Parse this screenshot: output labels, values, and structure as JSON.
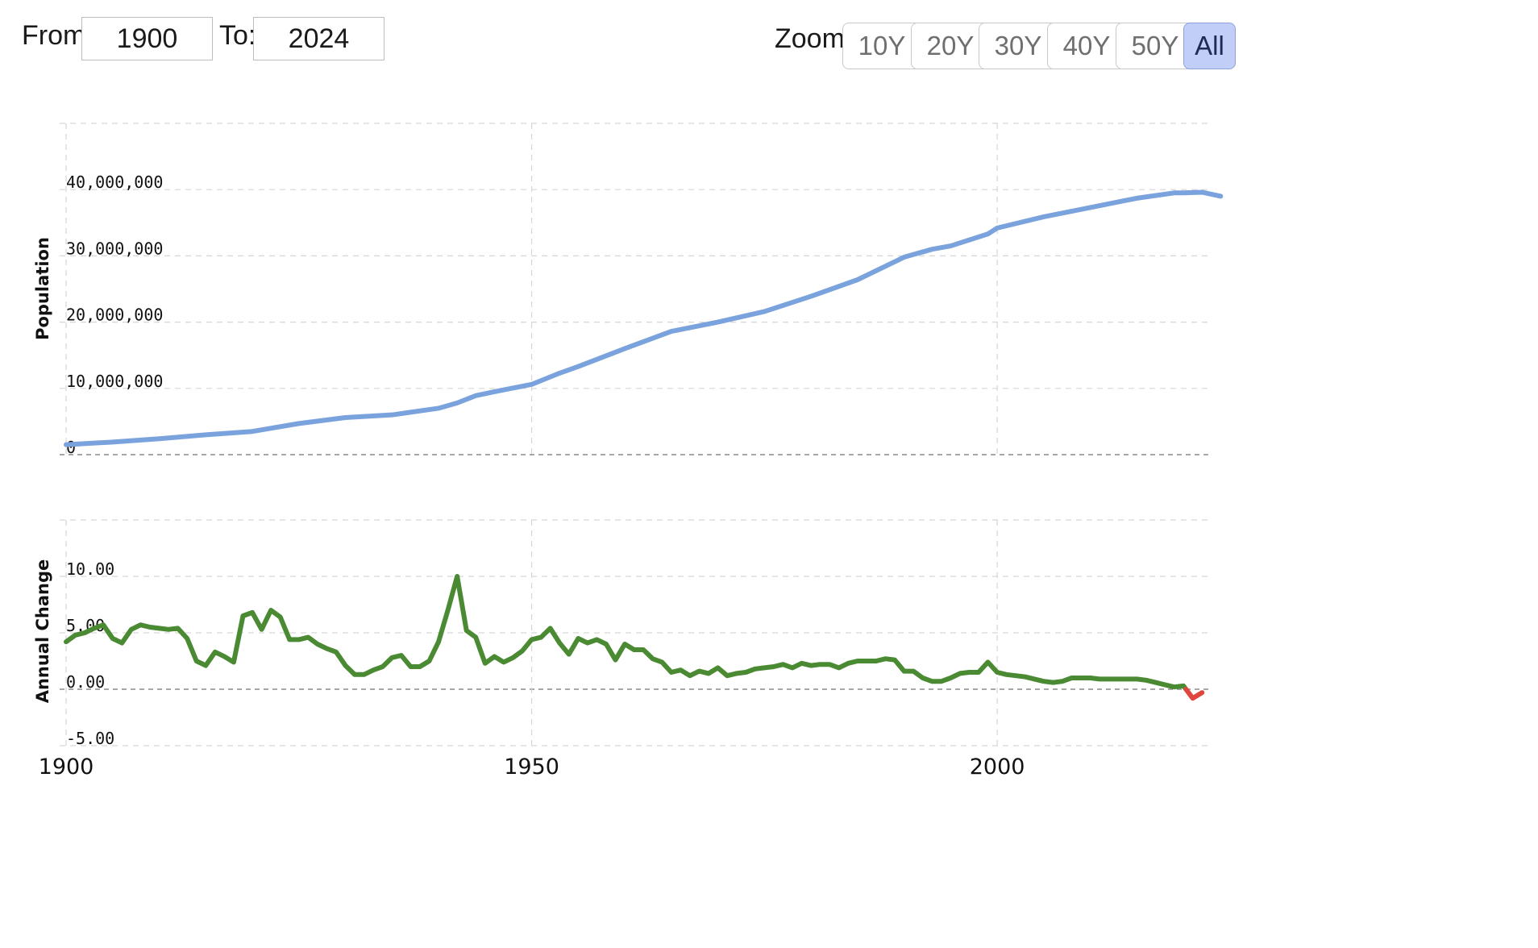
{
  "controls": {
    "from_label": "From:",
    "from_value": "1900",
    "to_label": "To:",
    "to_value": "2024",
    "zoom_label": "Zoom:",
    "zoom_buttons": [
      {
        "id": "10y",
        "label": "10Y",
        "active": false
      },
      {
        "id": "20y",
        "label": "20Y",
        "active": false
      },
      {
        "id": "30y",
        "label": "30Y",
        "active": false
      },
      {
        "id": "40y",
        "label": "40Y",
        "active": false
      },
      {
        "id": "50y",
        "label": "50Y",
        "active": false
      },
      {
        "id": "all",
        "label": "All",
        "active": true
      }
    ]
  },
  "chart_data": [
    {
      "type": "line",
      "ylabel": "Population",
      "ylim": [
        0,
        50000000
      ],
      "yticks": [
        0,
        10000000,
        20000000,
        30000000,
        40000000
      ],
      "ytick_labels": [
        "0",
        "10,000,000",
        "20,000,000",
        "30,000,000",
        "40,000,000"
      ],
      "grid": true,
      "color": "#7aa3dd",
      "series": [
        {
          "x": [
            1900,
            1905,
            1910,
            1915,
            1920,
            1925,
            1930,
            1935,
            1940,
            1942,
            1944,
            1946,
            1950,
            1953,
            1955,
            1960,
            1965,
            1970,
            1975,
            1980,
            1985,
            1990,
            1993,
            1995,
            1999,
            2000,
            2005,
            2010,
            2015,
            2019,
            2020,
            2022,
            2024
          ],
          "values": [
            1500000,
            1900000,
            2400000,
            3000000,
            3500000,
            4700000,
            5600000,
            6000000,
            7000000,
            7800000,
            8900000,
            9500000,
            10600000,
            12300000,
            13300000,
            16000000,
            18600000,
            20000000,
            21600000,
            23900000,
            26400000,
            29800000,
            31000000,
            31500000,
            33300000,
            34200000,
            35900000,
            37300000,
            38700000,
            39500000,
            39500000,
            39600000,
            39000000
          ]
        }
      ]
    },
    {
      "type": "line",
      "ylabel": "Annual Change",
      "ylim": [
        -5,
        15
      ],
      "yticks": [
        -5,
        0,
        5,
        10
      ],
      "ytick_labels": [
        "-5.00",
        "0.00",
        "5.00",
        "10.00"
      ],
      "xticks": [
        1900,
        1950,
        2000
      ],
      "xlim": [
        1900,
        2022.5
      ],
      "grid": true,
      "color": "#4a8a33",
      "negative_color": "#e0463d",
      "series": [
        {
          "x": [
            1900,
            1901,
            1902,
            1903,
            1904,
            1905,
            1906,
            1907,
            1908,
            1909,
            1910,
            1911,
            1912,
            1913,
            1914,
            1915,
            1916,
            1917,
            1918,
            1919,
            1920,
            1921,
            1922,
            1923,
            1924,
            1925,
            1926,
            1927,
            1928,
            1929,
            1930,
            1931,
            1932,
            1933,
            1934,
            1935,
            1936,
            1937,
            1938,
            1939,
            1940,
            1941,
            1942,
            1943,
            1944,
            1945,
            1946,
            1947,
            1948,
            1949,
            1950,
            1951,
            1952,
            1953,
            1954,
            1955,
            1956,
            1957,
            1958,
            1959,
            1960,
            1961,
            1962,
            1963,
            1964,
            1965,
            1966,
            1967,
            1968,
            1969,
            1970,
            1971,
            1972,
            1973,
            1974,
            1975,
            1976,
            1977,
            1978,
            1979,
            1980,
            1981,
            1982,
            1983,
            1984,
            1985,
            1986,
            1987,
            1988,
            1989,
            1990,
            1991,
            1992,
            1993,
            1994,
            1995,
            1996,
            1997,
            1998,
            1999,
            2000,
            2001,
            2002,
            2003,
            2004,
            2005,
            2006,
            2007,
            2008,
            2009,
            2010,
            2011,
            2012,
            2013,
            2014,
            2015,
            2016,
            2017,
            2018,
            2019,
            2020,
            2021,
            2022
          ],
          "values": [
            4.2,
            4.8,
            5.0,
            5.4,
            5.7,
            4.5,
            4.1,
            5.3,
            5.7,
            5.5,
            5.4,
            5.3,
            5.4,
            4.5,
            2.5,
            2.1,
            3.3,
            2.9,
            2.4,
            6.5,
            6.8,
            5.3,
            7.0,
            6.4,
            4.4,
            4.4,
            4.6,
            4.0,
            3.6,
            3.3,
            2.1,
            1.3,
            1.3,
            1.7,
            2.0,
            2.8,
            3.0,
            2.0,
            2.0,
            2.5,
            4.2,
            7.0,
            10.0,
            5.2,
            4.6,
            2.3,
            2.9,
            2.4,
            2.8,
            3.4,
            4.4,
            4.6,
            5.4,
            4.1,
            3.1,
            4.5,
            4.1,
            4.4,
            4.0,
            2.6,
            4.0,
            3.5,
            3.5,
            2.7,
            2.4,
            1.5,
            1.7,
            1.2,
            1.6,
            1.4,
            1.9,
            1.2,
            1.4,
            1.5,
            1.8,
            1.9,
            2.0,
            2.2,
            1.9,
            2.3,
            2.1,
            2.2,
            2.2,
            1.9,
            2.3,
            2.5,
            2.5,
            2.5,
            2.7,
            2.6,
            1.6,
            1.6,
            1.0,
            0.7,
            0.7,
            1.0,
            1.4,
            1.5,
            1.5,
            2.4,
            1.5,
            1.3,
            1.2,
            1.1,
            0.9,
            0.7,
            0.6,
            0.7,
            1.0,
            1.0,
            1.0,
            0.9,
            0.9,
            0.9,
            0.9,
            0.9,
            0.8,
            0.6,
            0.4,
            0.2,
            0.3,
            -0.8,
            -0.3
          ]
        }
      ]
    }
  ]
}
